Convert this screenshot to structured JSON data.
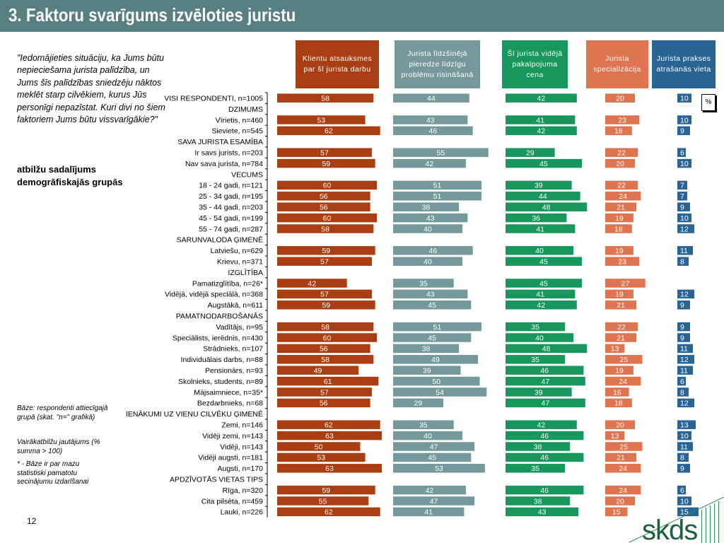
{
  "page": {
    "title": "3. Faktoru svarīgums izvēloties juristu",
    "question": "\"Iedomājieties situāciju, ka Jums būtu nepieciešama jurista palīdzība, un Jums šīs palīdzības sniedzēju nāktos meklēt starp cilvēkiem, kurus Jūs personīgi nepazīstat. Kuri divi no šiem faktoriem Jums būtu vissvarīgākie?\"",
    "subheading": "atbilžu sadalījums demogrāfiskajās grupās",
    "notes": [
      "Bāze: respondenti attiecīgajā grupā (skat. \"n=\" grafikā)",
      "Vairākatbilžu jautājums (% summa > 100)",
      "* - Bāze ir par mazu statistiski pamatotu secinājumu izdarīšanai"
    ],
    "page_number": "12",
    "percent_label": "%",
    "logo_text": "skds"
  },
  "colors": {
    "title_bg": "#577f7f",
    "series": [
      "#a93e12",
      "#75999a",
      "#17965d",
      "#de7450",
      "#296496"
    ]
  },
  "chart_data": {
    "type": "bar",
    "orientation": "horizontal",
    "series": [
      {
        "name": "Klientu atsauksmes par šī jurista darbu"
      },
      {
        "name": "Jurista līdzšinējā pieredze līdzīgu problēmu risināšanā"
      },
      {
        "name": "Šī jurista vidējā pakalpojuma cena"
      },
      {
        "name": "Jurista specializācija"
      },
      {
        "name": "Jurista prakses atrašanās vieta"
      }
    ],
    "rows": [
      {
        "label": "VISI RESPONDENTI, n=1005",
        "values": [
          58,
          44,
          42,
          20,
          10
        ]
      },
      {
        "label": "DZIMUMS",
        "header": true
      },
      {
        "label": "Vīrietis, n=460",
        "values": [
          53,
          43,
          41,
          23,
          10
        ]
      },
      {
        "label": "Sieviete, n=545",
        "values": [
          62,
          46,
          42,
          18,
          9
        ]
      },
      {
        "label": "SAVA JURISTA ESAMĪBA",
        "header": true
      },
      {
        "label": "Ir savs jurists, n=203",
        "values": [
          57,
          55,
          29,
          22,
          6
        ]
      },
      {
        "label": "Nav sava jurista, n=784",
        "values": [
          59,
          42,
          45,
          20,
          10
        ]
      },
      {
        "label": "VECUMS",
        "header": true
      },
      {
        "label": "18 - 24 gadi, n=121",
        "values": [
          60,
          51,
          39,
          22,
          7
        ]
      },
      {
        "label": "25 - 34 gadi, n=195",
        "values": [
          56,
          51,
          44,
          24,
          7
        ]
      },
      {
        "label": "35 - 44 gadi, n=203",
        "values": [
          56,
          38,
          48,
          21,
          9
        ]
      },
      {
        "label": "45 - 54 gadi, n=199",
        "values": [
          60,
          43,
          36,
          19,
          10
        ]
      },
      {
        "label": "55 - 74 gadi, n=287",
        "values": [
          58,
          40,
          41,
          18,
          12
        ]
      },
      {
        "label": "SARUNVALODA ĢIMENĒ",
        "header": true
      },
      {
        "label": "Latviešu, n=629",
        "values": [
          59,
          46,
          40,
          19,
          11
        ]
      },
      {
        "label": "Krievu, n=371",
        "values": [
          57,
          40,
          45,
          23,
          8
        ]
      },
      {
        "label": "IZGLĪTĪBA",
        "header": true
      },
      {
        "label": "Pamatizglītība, n=26*",
        "values": [
          42,
          35,
          45,
          27,
          null
        ]
      },
      {
        "label": "Vidējā, vidējā speciālā, n=368",
        "values": [
          57,
          43,
          41,
          19,
          12
        ]
      },
      {
        "label": "Augstākā, n=611",
        "values": [
          59,
          45,
          42,
          21,
          9
        ]
      },
      {
        "label": "PAMATNODARBOŠANĀS",
        "header": true
      },
      {
        "label": "Vadītājs, n=95",
        "values": [
          58,
          51,
          35,
          22,
          9
        ]
      },
      {
        "label": "Speciālists, ierēdnis, n=430",
        "values": [
          60,
          45,
          40,
          21,
          9
        ]
      },
      {
        "label": "Strādnieks, n=107",
        "values": [
          56,
          38,
          48,
          13,
          11
        ]
      },
      {
        "label": "Individuālais darbs, n=88",
        "values": [
          58,
          49,
          35,
          25,
          12
        ]
      },
      {
        "label": "Pensionārs, n=93",
        "values": [
          49,
          39,
          46,
          19,
          11
        ]
      },
      {
        "label": "Skolnieks, students, n=89",
        "values": [
          61,
          50,
          47,
          24,
          6
        ]
      },
      {
        "label": "Mājsaimniece, n=35*",
        "values": [
          57,
          54,
          39,
          16,
          8
        ]
      },
      {
        "label": "Bezdarbnieks, n=68",
        "values": [
          56,
          29,
          47,
          18,
          12
        ]
      },
      {
        "label": "IENĀKUMI UZ VIENU CILVĒKU ĢIMENĒ",
        "header": true
      },
      {
        "label": "Zemi, n=146",
        "values": [
          62,
          35,
          42,
          20,
          13
        ]
      },
      {
        "label": "Vidēji zemi, n=143",
        "values": [
          63,
          40,
          46,
          13,
          10
        ]
      },
      {
        "label": "Vidēji, n=143",
        "values": [
          50,
          47,
          38,
          25,
          11
        ]
      },
      {
        "label": "Vidēji augsti, n=181",
        "values": [
          53,
          45,
          46,
          21,
          8
        ]
      },
      {
        "label": "Augsti, n=170",
        "values": [
          63,
          53,
          35,
          24,
          9
        ]
      },
      {
        "label": "APDZĪVOTĀS VIETAS TIPS",
        "header": true
      },
      {
        "label": "Rīga, n=320",
        "values": [
          59,
          42,
          46,
          24,
          6
        ]
      },
      {
        "label": "Cita pilsēta, n=459",
        "values": [
          55,
          47,
          38,
          20,
          10
        ]
      },
      {
        "label": "Lauki, n=226",
        "values": [
          62,
          41,
          43,
          15,
          15
        ]
      }
    ]
  }
}
